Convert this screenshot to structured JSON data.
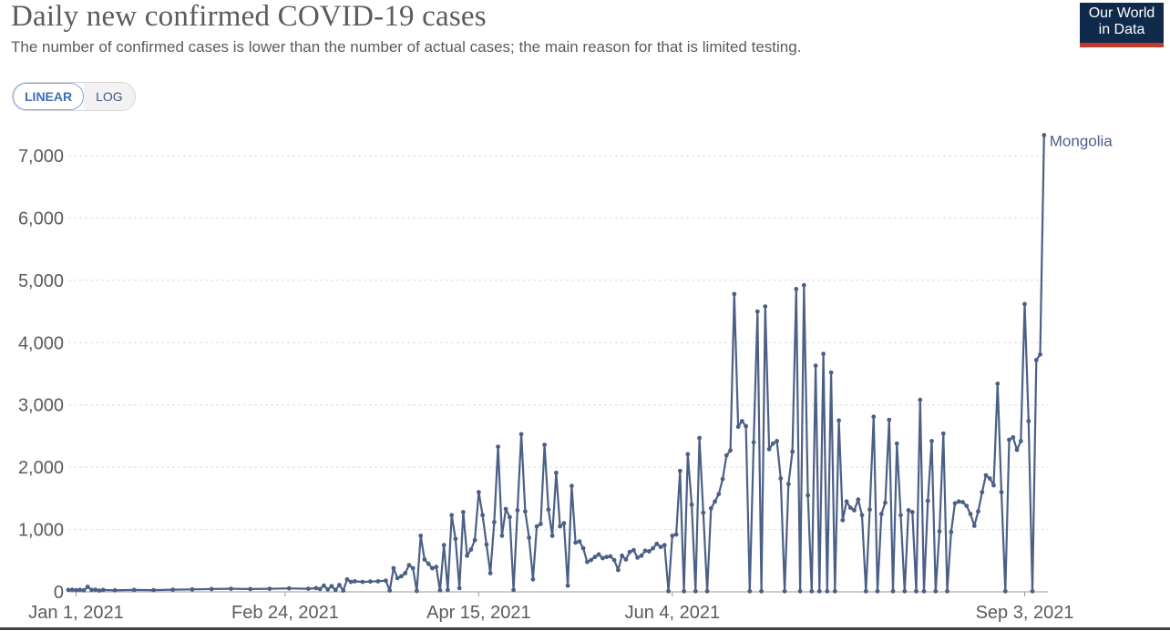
{
  "header": {
    "title": "Daily new confirmed COVID-19 cases",
    "subtitle": "The number of confirmed cases is lower than the number of actual cases; the main reason for that is limited testing.",
    "logo_line1": "Our World",
    "logo_line2": "in Data"
  },
  "scale_toggle": {
    "linear_label": "LINEAR",
    "log_label": "LOG",
    "selected": "LINEAR"
  },
  "colors": {
    "series": "#4c5f86",
    "grid": "#dddddd",
    "text": "#5b5b5b",
    "logo_bg": "#0f2a4a",
    "logo_accent": "#c0392b"
  },
  "chart_data": {
    "type": "line",
    "title": "Daily new confirmed COVID-19 cases",
    "xlabel": "",
    "ylabel": "",
    "ylim": [
      0,
      7000
    ],
    "yticks": [
      0,
      1000,
      2000,
      3000,
      4000,
      5000,
      6000,
      7000
    ],
    "ytick_labels": [
      "0",
      "1,000",
      "2,000",
      "3,000",
      "4,000",
      "5,000",
      "6,000",
      "7,000"
    ],
    "xlim_days": [
      -2,
      251
    ],
    "xticks": [
      {
        "day": 0,
        "label": "Jan 1, 2021"
      },
      {
        "day": 54,
        "label": "Feb 24, 2021"
      },
      {
        "day": 104,
        "label": "Apr 15, 2021"
      },
      {
        "day": 154,
        "label": "Jun 4, 2021"
      },
      {
        "day": 245,
        "label": "Sep 3, 2021"
      }
    ],
    "grid": true,
    "series": [
      {
        "name": "Mongolia",
        "x_unit": "days since Jan 1, 2021",
        "points": [
          [
            -2,
            30
          ],
          [
            -1,
            35
          ],
          [
            0,
            28
          ],
          [
            1,
            32
          ],
          [
            2,
            25
          ],
          [
            3,
            80
          ],
          [
            4,
            30
          ],
          [
            5,
            35
          ],
          [
            6,
            20
          ],
          [
            7,
            30
          ],
          [
            10,
            25
          ],
          [
            15,
            30
          ],
          [
            20,
            28
          ],
          [
            25,
            35
          ],
          [
            30,
            40
          ],
          [
            35,
            45
          ],
          [
            40,
            50
          ],
          [
            45,
            45
          ],
          [
            50,
            50
          ],
          [
            55,
            55
          ],
          [
            60,
            50
          ],
          [
            62,
            60
          ],
          [
            63,
            45
          ],
          [
            64,
            100
          ],
          [
            65,
            40
          ],
          [
            66,
            90
          ],
          [
            67,
            30
          ],
          [
            68,
            110
          ],
          [
            69,
            20
          ],
          [
            70,
            200
          ],
          [
            71,
            160
          ],
          [
            72,
            170
          ],
          [
            74,
            160
          ],
          [
            76,
            165
          ],
          [
            78,
            170
          ],
          [
            80,
            180
          ],
          [
            81,
            20
          ],
          [
            82,
            380
          ],
          [
            83,
            220
          ],
          [
            84,
            250
          ],
          [
            85,
            300
          ],
          [
            86,
            430
          ],
          [
            87,
            380
          ],
          [
            88,
            15
          ],
          [
            89,
            900
          ],
          [
            90,
            520
          ],
          [
            91,
            450
          ],
          [
            92,
            380
          ],
          [
            93,
            400
          ],
          [
            94,
            25
          ],
          [
            95,
            750
          ],
          [
            96,
            30
          ],
          [
            97,
            1230
          ],
          [
            98,
            850
          ],
          [
            99,
            60
          ],
          [
            100,
            1280
          ],
          [
            101,
            580
          ],
          [
            102,
            680
          ],
          [
            103,
            830
          ],
          [
            104,
            1600
          ],
          [
            105,
            1230
          ],
          [
            106,
            760
          ],
          [
            107,
            300
          ],
          [
            108,
            1120
          ],
          [
            109,
            2330
          ],
          [
            110,
            900
          ],
          [
            111,
            1330
          ],
          [
            112,
            1200
          ],
          [
            113,
            30
          ],
          [
            114,
            1310
          ],
          [
            115,
            2530
          ],
          [
            116,
            1290
          ],
          [
            117,
            870
          ],
          [
            118,
            200
          ],
          [
            119,
            1050
          ],
          [
            120,
            1090
          ],
          [
            121,
            2360
          ],
          [
            122,
            1320
          ],
          [
            123,
            900
          ],
          [
            124,
            1910
          ],
          [
            125,
            1050
          ],
          [
            126,
            1100
          ],
          [
            127,
            100
          ],
          [
            128,
            1700
          ],
          [
            129,
            790
          ],
          [
            130,
            810
          ],
          [
            131,
            700
          ],
          [
            132,
            480
          ],
          [
            133,
            510
          ],
          [
            134,
            560
          ],
          [
            135,
            600
          ],
          [
            136,
            540
          ],
          [
            137,
            560
          ],
          [
            138,
            570
          ],
          [
            139,
            510
          ],
          [
            140,
            350
          ],
          [
            141,
            580
          ],
          [
            142,
            520
          ],
          [
            143,
            640
          ],
          [
            144,
            670
          ],
          [
            145,
            550
          ],
          [
            146,
            580
          ],
          [
            147,
            660
          ],
          [
            148,
            650
          ],
          [
            149,
            700
          ],
          [
            150,
            770
          ],
          [
            151,
            720
          ],
          [
            152,
            750
          ],
          [
            153,
            10
          ],
          [
            154,
            900
          ],
          [
            155,
            920
          ],
          [
            156,
            1940
          ],
          [
            157,
            10
          ],
          [
            158,
            2210
          ],
          [
            159,
            1400
          ],
          [
            160,
            10
          ],
          [
            161,
            2470
          ],
          [
            162,
            1270
          ],
          [
            163,
            10
          ],
          [
            164,
            1340
          ],
          [
            165,
            1450
          ],
          [
            166,
            1570
          ],
          [
            167,
            1810
          ],
          [
            168,
            2190
          ],
          [
            169,
            2270
          ],
          [
            170,
            4780
          ],
          [
            171,
            2650
          ],
          [
            172,
            2740
          ],
          [
            173,
            2660
          ],
          [
            174,
            10
          ],
          [
            175,
            2400
          ],
          [
            176,
            4500
          ],
          [
            177,
            10
          ],
          [
            178,
            4580
          ],
          [
            179,
            2290
          ],
          [
            180,
            2380
          ],
          [
            181,
            2420
          ],
          [
            182,
            1820
          ],
          [
            183,
            10
          ],
          [
            184,
            1730
          ],
          [
            185,
            2250
          ],
          [
            186,
            4860
          ],
          [
            187,
            10
          ],
          [
            188,
            4920
          ],
          [
            189,
            1550
          ],
          [
            190,
            10
          ],
          [
            191,
            3630
          ],
          [
            192,
            10
          ],
          [
            193,
            3820
          ],
          [
            194,
            10
          ],
          [
            195,
            3520
          ],
          [
            196,
            10
          ],
          [
            197,
            2750
          ],
          [
            198,
            1150
          ],
          [
            199,
            1450
          ],
          [
            200,
            1350
          ],
          [
            201,
            1310
          ],
          [
            202,
            1480
          ],
          [
            203,
            1230
          ],
          [
            204,
            10
          ],
          [
            205,
            1320
          ],
          [
            206,
            2810
          ],
          [
            207,
            10
          ],
          [
            208,
            1250
          ],
          [
            209,
            1430
          ],
          [
            210,
            2760
          ],
          [
            211,
            10
          ],
          [
            212,
            2380
          ],
          [
            213,
            1230
          ],
          [
            214,
            10
          ],
          [
            215,
            1310
          ],
          [
            216,
            1280
          ],
          [
            217,
            10
          ],
          [
            218,
            3080
          ],
          [
            219,
            10
          ],
          [
            220,
            1460
          ],
          [
            221,
            2420
          ],
          [
            222,
            10
          ],
          [
            223,
            970
          ],
          [
            224,
            2540
          ],
          [
            225,
            10
          ],
          [
            226,
            960
          ],
          [
            227,
            1420
          ],
          [
            228,
            1450
          ],
          [
            229,
            1440
          ],
          [
            230,
            1380
          ],
          [
            231,
            1250
          ],
          [
            232,
            1060
          ],
          [
            233,
            1290
          ],
          [
            234,
            1600
          ],
          [
            235,
            1870
          ],
          [
            236,
            1820
          ],
          [
            237,
            1710
          ],
          [
            238,
            3340
          ],
          [
            239,
            1600
          ],
          [
            240,
            10
          ],
          [
            241,
            2440
          ],
          [
            242,
            2480
          ],
          [
            243,
            2280
          ],
          [
            244,
            2420
          ],
          [
            245,
            4620
          ],
          [
            246,
            2740
          ],
          [
            247,
            10
          ],
          [
            248,
            3720
          ],
          [
            249,
            3810
          ],
          [
            250,
            7330
          ]
        ]
      }
    ],
    "series_label": "Mongolia"
  }
}
